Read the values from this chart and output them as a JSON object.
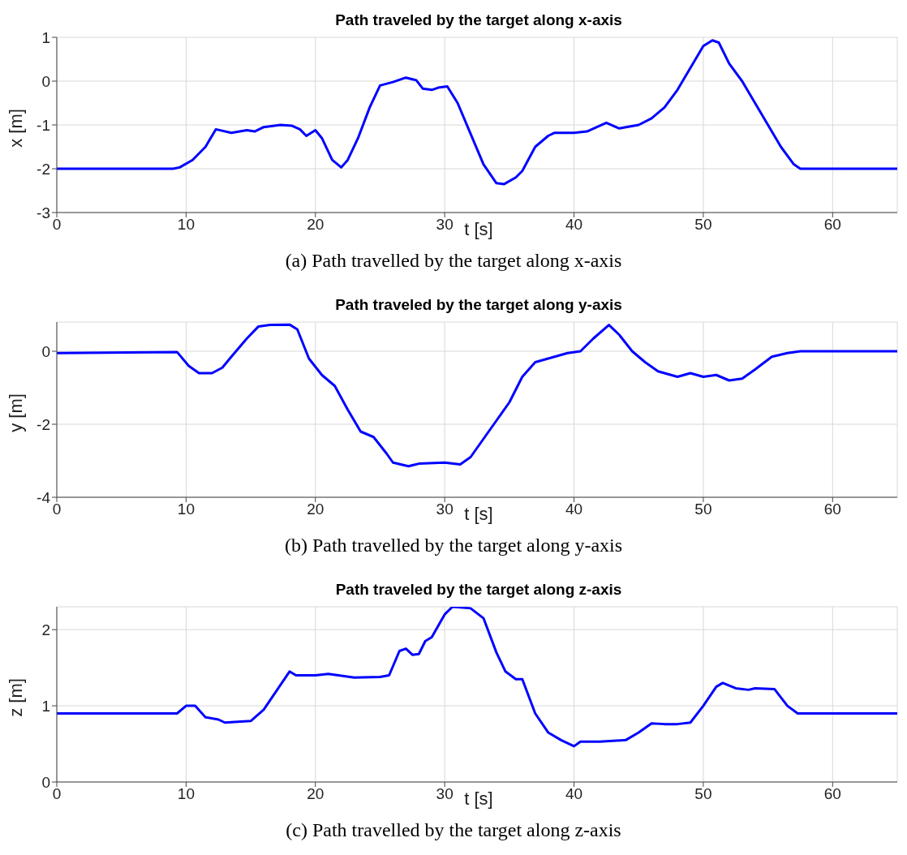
{
  "chart_data": [
    {
      "type": "line",
      "title": "Path traveled by the target along x-axis",
      "xlabel": "t [s]",
      "ylabel": "x [m]",
      "annotations": [
        "(a) Path travelled by the target along x-axis"
      ],
      "grid": true,
      "xlim": [
        0,
        65
      ],
      "xticks": [
        0,
        10,
        20,
        30,
        40,
        50,
        60
      ],
      "ylim": [
        -3,
        1
      ],
      "yticks": [
        -3,
        -2,
        -1,
        0,
        1
      ],
      "x": [
        0,
        9,
        9.5,
        10.5,
        11.5,
        12.3,
        13.5,
        14.7,
        15.3,
        16,
        17.3,
        18.2,
        18.8,
        19.3,
        20,
        20.5,
        21.3,
        22,
        22.5,
        23.3,
        24.2,
        25,
        26,
        27,
        27.8,
        28.3,
        29,
        29.5,
        30.2,
        31,
        32,
        33,
        34,
        34.6,
        35.5,
        36,
        37,
        38,
        38.5,
        40,
        41,
        42.5,
        43.5,
        45,
        46,
        47,
        48,
        49,
        50,
        50.7,
        51.2,
        52,
        53,
        54,
        55,
        56,
        57,
        57.5,
        65
      ],
      "series": [
        {
          "color": "#0000ff",
          "values": [
            -2,
            -2,
            -1.97,
            -1.8,
            -1.5,
            -1.1,
            -1.18,
            -1.12,
            -1.15,
            -1.05,
            -1,
            -1.02,
            -1.1,
            -1.25,
            -1.12,
            -1.3,
            -1.8,
            -1.97,
            -1.8,
            -1.3,
            -0.6,
            -0.1,
            -0.02,
            0.08,
            0.02,
            -0.17,
            -0.2,
            -0.15,
            -0.12,
            -0.5,
            -1.2,
            -1.9,
            -2.33,
            -2.35,
            -2.2,
            -2.05,
            -1.5,
            -1.25,
            -1.18,
            -1.18,
            -1.15,
            -0.95,
            -1.08,
            -1,
            -0.85,
            -0.6,
            -0.2,
            0.3,
            0.8,
            0.93,
            0.88,
            0.4,
            0,
            -0.5,
            -1,
            -1.5,
            -1.9,
            -2,
            -2
          ]
        }
      ]
    },
    {
      "type": "line",
      "title": "Path traveled by the target along y-axis",
      "xlabel": "t [s]",
      "ylabel": "y [m]",
      "annotations": [
        "(b) Path travelled by the target along y-axis"
      ],
      "grid": true,
      "xlim": [
        0,
        65
      ],
      "xticks": [
        0,
        10,
        20,
        30,
        40,
        50,
        60
      ],
      "ylim": [
        -4,
        0.8
      ],
      "yticks": [
        -4,
        -2,
        0
      ],
      "x": [
        0,
        9.3,
        10.2,
        11,
        12,
        12.8,
        13.5,
        14.7,
        15.6,
        16.5,
        18,
        18.6,
        19.5,
        20.5,
        21.5,
        22.5,
        23.5,
        24.5,
        25.5,
        26,
        27.2,
        28,
        30,
        31.2,
        32,
        33,
        34,
        35,
        36,
        37,
        38.5,
        39.5,
        40.5,
        41.5,
        42.7,
        43.5,
        44.5,
        45.5,
        46.5,
        48,
        49,
        50,
        51,
        52,
        53,
        54,
        55.3,
        56.5,
        57.5,
        65
      ],
      "series": [
        {
          "color": "#0000ff",
          "values": [
            -0.05,
            -0.02,
            -0.4,
            -0.6,
            -0.6,
            -0.45,
            -0.15,
            0.35,
            0.68,
            0.72,
            0.73,
            0.6,
            -0.2,
            -0.65,
            -0.95,
            -1.6,
            -2.2,
            -2.35,
            -2.8,
            -3.05,
            -3.15,
            -3.08,
            -3.05,
            -3.1,
            -2.9,
            -2.4,
            -1.9,
            -1.4,
            -0.7,
            -0.3,
            -0.15,
            -0.05,
            0,
            0.35,
            0.72,
            0.45,
            0,
            -0.3,
            -0.55,
            -0.7,
            -0.6,
            -0.7,
            -0.65,
            -0.8,
            -0.75,
            -0.5,
            -0.15,
            -0.05,
            0,
            0
          ]
        }
      ]
    },
    {
      "type": "line",
      "title": "Path traveled by the target along z-axis",
      "xlabel": "t [s]",
      "ylabel": "z [m]",
      "annotations": [
        "(c) Path travelled by the target along z-axis"
      ],
      "grid": true,
      "xlim": [
        0,
        65
      ],
      "xticks": [
        0,
        10,
        20,
        30,
        40,
        50,
        60
      ],
      "ylim": [
        0,
        2.3
      ],
      "yticks": [
        0,
        1,
        2
      ],
      "x": [
        0,
        9.3,
        10,
        10.7,
        11.5,
        12.5,
        13,
        15,
        16,
        17,
        18,
        18.5,
        20,
        21,
        23,
        25,
        25.7,
        26.5,
        27,
        27.5,
        28,
        28.5,
        29,
        30,
        30.6,
        32,
        33,
        34,
        34.7,
        35.5,
        36,
        37,
        38,
        39,
        40,
        40.5,
        42,
        44,
        45,
        46,
        47,
        48,
        49,
        50,
        51,
        51.5,
        52.5,
        53.5,
        54,
        55.5,
        56.5,
        57.3,
        65
      ],
      "series": [
        {
          "color": "#0000ff",
          "values": [
            0.9,
            0.9,
            1,
            1,
            0.85,
            0.82,
            0.78,
            0.8,
            0.95,
            1.2,
            1.45,
            1.4,
            1.4,
            1.42,
            1.37,
            1.38,
            1.4,
            1.72,
            1.75,
            1.67,
            1.68,
            1.85,
            1.9,
            2.2,
            2.3,
            2.28,
            2.15,
            1.7,
            1.45,
            1.35,
            1.35,
            0.9,
            0.65,
            0.55,
            0.47,
            0.53,
            0.53,
            0.55,
            0.65,
            0.77,
            0.76,
            0.76,
            0.78,
            1,
            1.25,
            1.3,
            1.23,
            1.21,
            1.23,
            1.22,
            1,
            0.9,
            0.9
          ]
        }
      ]
    }
  ]
}
